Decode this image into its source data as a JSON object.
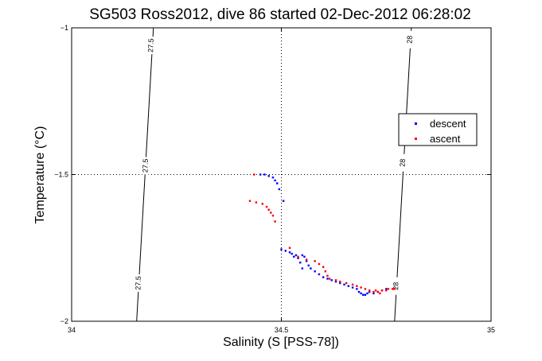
{
  "chart_data": {
    "type": "scatter",
    "title": "SG503 Ross2012, dive 86 started 02-Dec-2012 06:28:02",
    "xlabel": "Salinity (S [PSS-78])",
    "ylabel": "Temperature (°C)",
    "xlim": [
      34,
      35
    ],
    "ylim": [
      -2,
      -1
    ],
    "xticks": [
      "34",
      "34.5",
      "35"
    ],
    "yticks": [
      "-2",
      "-1.5",
      "-1"
    ],
    "grid": "dotted at 34.5 / -1.5",
    "legend_position": "right",
    "contour_lines": [
      {
        "level": "27.5",
        "points": [
          [
            34.155,
            -2.0
          ],
          [
            34.195,
            -1.0
          ]
        ],
        "labels": [
          [
            34.19,
            -1.06
          ],
          [
            34.177,
            -1.47
          ],
          [
            34.16,
            -1.87
          ]
        ]
      },
      {
        "level": "28",
        "points": [
          [
            34.77,
            -2.0
          ],
          [
            34.81,
            -1.0
          ]
        ],
        "labels": [
          [
            34.807,
            -1.04
          ],
          [
            34.79,
            -1.46
          ],
          [
            34.774,
            -1.88
          ]
        ]
      }
    ],
    "series": [
      {
        "name": "descent",
        "color": "#0000ff",
        "points": [
          [
            34.45,
            -1.5
          ],
          [
            34.46,
            -1.5
          ],
          [
            34.47,
            -1.505
          ],
          [
            34.48,
            -1.51
          ],
          [
            34.485,
            -1.52
          ],
          [
            34.49,
            -1.53
          ],
          [
            34.495,
            -1.55
          ],
          [
            34.505,
            -1.59
          ],
          [
            34.5,
            -1.755
          ],
          [
            34.51,
            -1.76
          ],
          [
            34.52,
            -1.765
          ],
          [
            34.525,
            -1.77
          ],
          [
            34.53,
            -1.78
          ],
          [
            34.535,
            -1.775
          ],
          [
            34.54,
            -1.785
          ],
          [
            34.55,
            -1.775
          ],
          [
            34.555,
            -1.78
          ],
          [
            34.56,
            -1.795
          ],
          [
            34.565,
            -1.81
          ],
          [
            34.57,
            -1.82
          ],
          [
            34.58,
            -1.83
          ],
          [
            34.59,
            -1.84
          ],
          [
            34.6,
            -1.85
          ],
          [
            34.61,
            -1.855
          ],
          [
            34.62,
            -1.86
          ],
          [
            34.63,
            -1.865
          ],
          [
            34.64,
            -1.87
          ],
          [
            34.65,
            -1.875
          ],
          [
            34.66,
            -1.88
          ],
          [
            34.67,
            -1.885
          ],
          [
            34.68,
            -1.89
          ],
          [
            34.685,
            -1.9
          ],
          [
            34.69,
            -1.905
          ],
          [
            34.695,
            -1.91
          ],
          [
            34.7,
            -1.91
          ],
          [
            34.705,
            -1.905
          ],
          [
            34.71,
            -1.9
          ],
          [
            34.72,
            -1.905
          ],
          [
            34.73,
            -1.9
          ],
          [
            34.74,
            -1.895
          ],
          [
            34.75,
            -1.89
          ],
          [
            34.545,
            -1.8
          ],
          [
            34.55,
            -1.82
          ]
        ]
      },
      {
        "name": "ascent",
        "color": "#ff0000",
        "points": [
          [
            34.435,
            -1.5
          ],
          [
            34.425,
            -1.59
          ],
          [
            34.44,
            -1.595
          ],
          [
            34.455,
            -1.6
          ],
          [
            34.465,
            -1.61
          ],
          [
            34.47,
            -1.62
          ],
          [
            34.475,
            -1.63
          ],
          [
            34.48,
            -1.64
          ],
          [
            34.485,
            -1.66
          ],
          [
            34.52,
            -1.75
          ],
          [
            34.54,
            -1.78
          ],
          [
            34.56,
            -1.79
          ],
          [
            34.58,
            -1.795
          ],
          [
            34.59,
            -1.805
          ],
          [
            34.6,
            -1.815
          ],
          [
            34.605,
            -1.83
          ],
          [
            34.61,
            -1.845
          ],
          [
            34.615,
            -1.855
          ],
          [
            34.63,
            -1.86
          ],
          [
            34.64,
            -1.865
          ],
          [
            34.655,
            -1.87
          ],
          [
            34.67,
            -1.875
          ],
          [
            34.68,
            -1.88
          ],
          [
            34.69,
            -1.885
          ],
          [
            34.7,
            -1.89
          ],
          [
            34.71,
            -1.895
          ],
          [
            34.72,
            -1.9
          ],
          [
            34.73,
            -1.9
          ],
          [
            34.74,
            -1.895
          ],
          [
            34.75,
            -1.895
          ],
          [
            34.755,
            -1.89
          ],
          [
            34.765,
            -1.89
          ],
          [
            34.77,
            -1.89
          ],
          [
            34.725,
            -1.895
          ],
          [
            34.735,
            -1.905
          ]
        ]
      }
    ]
  }
}
